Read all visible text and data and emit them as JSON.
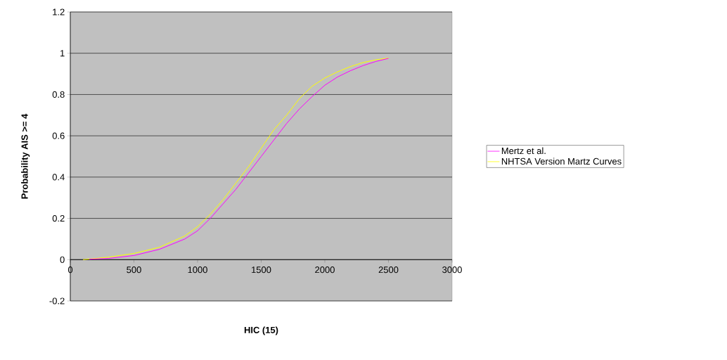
{
  "chart_data": {
    "type": "line",
    "xlabel": "HIC (15)",
    "ylabel": "Probability AIS >= 4",
    "xlim": [
      0,
      3000
    ],
    "xticks": [
      0,
      500,
      1000,
      1500,
      2000,
      2500,
      3000
    ],
    "ylim": [
      -0.2,
      1.2
    ],
    "yticks": [
      -0.2,
      0,
      0.2,
      0.4,
      0.6,
      0.8,
      1,
      1.2
    ],
    "grid": "y",
    "legend": "right",
    "marker": "none",
    "line_style": "solid",
    "series": [
      {
        "name": "Mertz et al.",
        "color": "#ff00ff",
        "x": [
          150,
          300,
          500,
          700,
          900,
          1000,
          1100,
          1200,
          1300,
          1400,
          1500,
          1600,
          1700,
          1800,
          1900,
          2000,
          2100,
          2200,
          2300,
          2400,
          2500
        ],
        "values": [
          0.002,
          0.006,
          0.02,
          0.05,
          0.1,
          0.14,
          0.2,
          0.27,
          0.34,
          0.42,
          0.5,
          0.58,
          0.66,
          0.73,
          0.79,
          0.845,
          0.885,
          0.915,
          0.94,
          0.96,
          0.975
        ]
      },
      {
        "name": "NHTSA Version Martz Curves",
        "color": "#ffff00",
        "x": [
          100,
          300,
          500,
          700,
          900,
          1000,
          1100,
          1200,
          1300,
          1400,
          1500,
          1600,
          1700,
          1800,
          1900,
          2000,
          2100,
          2200,
          2300,
          2400,
          2500
        ],
        "values": [
          0.0,
          0.012,
          0.03,
          0.06,
          0.115,
          0.16,
          0.22,
          0.29,
          0.37,
          0.45,
          0.54,
          0.63,
          0.7,
          0.78,
          0.84,
          0.88,
          0.91,
          0.935,
          0.955,
          0.968,
          0.977
        ]
      }
    ]
  }
}
